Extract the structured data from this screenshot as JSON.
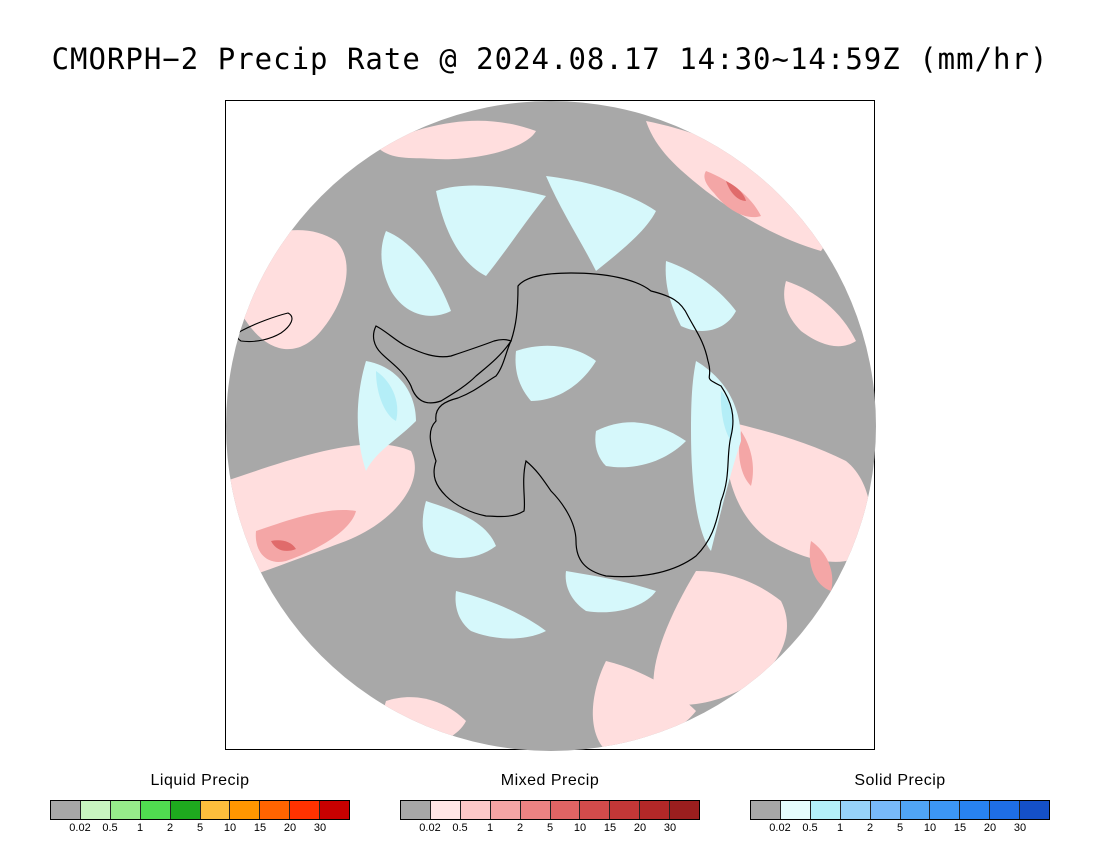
{
  "title": "CMORPH−2 Precip Rate @ 2024.08.17 14:30~14:59Z (mm/hr)",
  "map": {
    "projection": "south polar stereographic",
    "colors": {
      "no_precip": "#a8a8a8",
      "mixed_light": "#ffdede",
      "mixed_mid": "#f4a6a6",
      "mixed_heavy": "#e06b6b",
      "solid_light": "#d6f8fb",
      "solid_mid": "#b4eef7",
      "coastline": "#000000",
      "outside": "#ffffff"
    }
  },
  "legend": {
    "tick_labels": [
      "0.02",
      "0.5",
      "1",
      "2",
      "5",
      "10",
      "15",
      "20",
      "30"
    ],
    "groups": [
      {
        "title": "Liquid Precip",
        "colors": [
          "#a6a6a6",
          "#c8f5c0",
          "#96eb8a",
          "#50dc50",
          "#1eaa1e",
          "#fdbe3c",
          "#ff9600",
          "#ff6400",
          "#ff3200",
          "#c80000"
        ]
      },
      {
        "title": "Mixed Precip",
        "colors": [
          "#a6a6a6",
          "#ffe6e6",
          "#fcc8c8",
          "#f5a5a5",
          "#ec8282",
          "#e06464",
          "#d24b4b",
          "#c33737",
          "#b22828",
          "#9b1e1e"
        ]
      },
      {
        "title": "Solid Precip",
        "colors": [
          "#a6a6a6",
          "#e4fcfc",
          "#b4f0fa",
          "#96d2fa",
          "#78b9fa",
          "#50a5f5",
          "#3c96f5",
          "#2882f0",
          "#1e6ee6",
          "#1450c8"
        ]
      }
    ]
  }
}
